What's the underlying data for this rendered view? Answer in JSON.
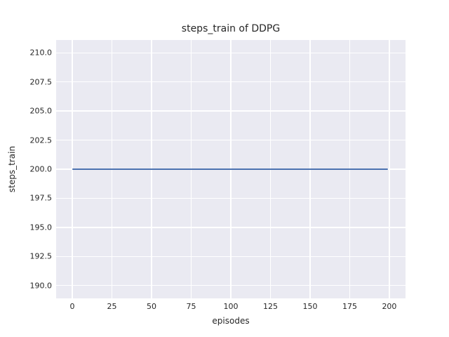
{
  "chart_data": {
    "type": "line",
    "title": "steps_train of DDPG",
    "xlabel": "episodes",
    "ylabel": "steps_train",
    "xlim": [
      -10.2,
      210.2
    ],
    "ylim": [
      188.9,
      211.1
    ],
    "x_ticks": {
      "values": [
        0,
        25,
        50,
        75,
        100,
        125,
        150,
        175,
        200
      ],
      "labels": [
        "0",
        "25",
        "50",
        "75",
        "100",
        "125",
        "150",
        "175",
        "200"
      ]
    },
    "y_ticks": {
      "values": [
        210.0,
        207.5,
        205.0,
        202.5,
        200.0,
        197.5,
        195.0,
        192.5,
        190.0
      ],
      "labels": [
        "210.0",
        "207.5",
        "205.0",
        "202.5",
        "200.0",
        "197.5",
        "195.0",
        "192.5",
        "190.0"
      ]
    },
    "grid": "on",
    "legend": "none",
    "series": [
      {
        "name": "steps-train",
        "color": "#4C72B0",
        "x": [
          0,
          199
        ],
        "y": [
          200,
          200
        ]
      }
    ],
    "colors": {
      "plot_background": "#EAEAF2",
      "gridline": "#FFFFFF",
      "figure_background": "#FFFFFF",
      "text": "#262626",
      "line": "#4C72B0"
    }
  }
}
